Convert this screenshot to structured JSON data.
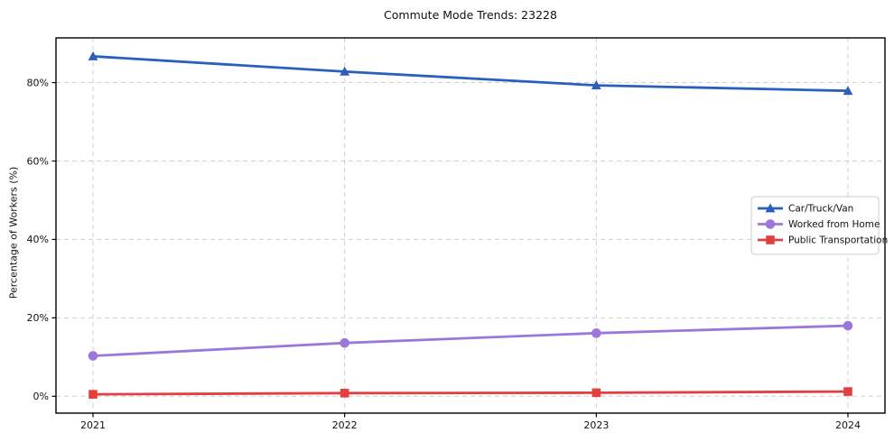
{
  "chart_data": {
    "type": "line",
    "title": "Commute Mode Trends: 23228",
    "xlabel": "",
    "ylabel": "Percentage of Workers (%)",
    "categories": [
      "2021",
      "2022",
      "2023",
      "2024"
    ],
    "series": [
      {
        "name": "Car/Truck/Van",
        "marker": "triangle",
        "color": "#2b5fbd",
        "values": [
          86.7,
          82.8,
          79.3,
          77.9
        ]
      },
      {
        "name": "Worked from Home",
        "marker": "circle",
        "color": "#9b77dc",
        "values": [
          10.3,
          13.6,
          16.1,
          18.0
        ]
      },
      {
        "name": "Public Transportation",
        "marker": "square",
        "color": "#e43f3f",
        "values": [
          0.5,
          0.8,
          0.9,
          1.2
        ]
      }
    ],
    "yticks": {
      "values": [
        0,
        20,
        40,
        60,
        80
      ],
      "labels": [
        "0%",
        "20%",
        "40%",
        "60%",
        "80%"
      ]
    },
    "ylim": [
      -4.3,
      91.4
    ],
    "grid": true,
    "grid_style": "dashed",
    "legend_position": "center right",
    "colors": {
      "grid": "#cfcfcf",
      "spine": "#000000",
      "legend_border": "#cccccc",
      "legend_background": "#ffffff",
      "text": "#111111"
    }
  }
}
